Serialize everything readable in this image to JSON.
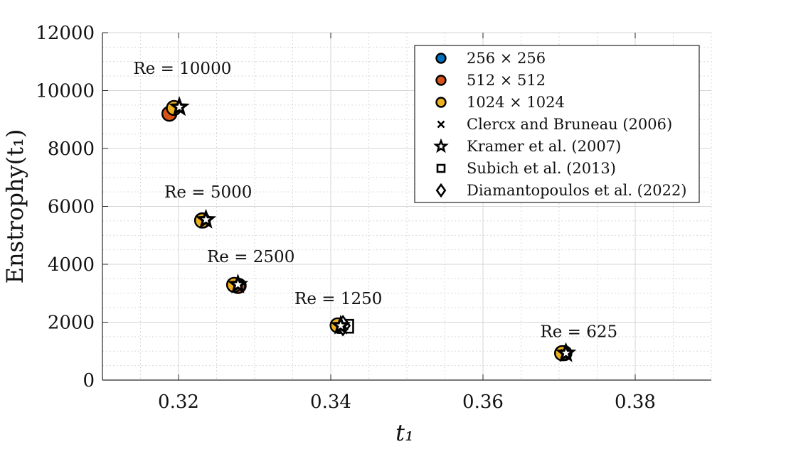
{
  "chart_data": {
    "type": "scatter",
    "xlabel": "t₁",
    "ylabel": "Enstrophy(t₁)",
    "xlim": [
      0.31,
      0.39
    ],
    "ylim": [
      0,
      12000
    ],
    "xticks": [
      0.32,
      0.34,
      0.36,
      0.38
    ],
    "yticks": [
      0,
      2000,
      4000,
      6000,
      8000,
      10000,
      12000
    ],
    "xtick_labels": [
      "0.32",
      "0.34",
      "0.36",
      "0.38"
    ],
    "ytick_labels": [
      "0",
      "2000",
      "4000",
      "6000",
      "8000",
      "10000",
      "12000"
    ],
    "grid": true,
    "minor_grid": true,
    "legend_position": "top-right",
    "series": [
      {
        "name": "256 × 256",
        "marker": "circle",
        "color": "#0072BD",
        "points": [
          [
            0.3231,
            5520
          ],
          [
            0.3279,
            3260
          ],
          [
            0.3411,
            1870
          ],
          [
            0.3707,
            930
          ]
        ]
      },
      {
        "name": "512 × 512",
        "marker": "circle",
        "color": "#D95319",
        "points": [
          [
            0.3188,
            9200
          ],
          [
            0.3232,
            5510
          ],
          [
            0.3278,
            3250
          ],
          [
            0.3414,
            1880
          ],
          [
            0.3704,
            930
          ]
        ]
      },
      {
        "name": "1024 × 1024",
        "marker": "circle",
        "color": "#EDB120",
        "points": [
          [
            0.3194,
            9400
          ],
          [
            0.3231,
            5510
          ],
          [
            0.3273,
            3290
          ],
          [
            0.3409,
            1890
          ],
          [
            0.3704,
            930
          ]
        ]
      },
      {
        "name": "Clercx and Bruneau (2006)",
        "marker": "x",
        "color": "#000000",
        "points": [
          [
            0.3202,
            9380
          ],
          [
            0.3235,
            5500
          ],
          [
            0.3279,
            3250
          ],
          [
            0.3417,
            1880
          ],
          [
            0.3708,
            910
          ]
        ]
      },
      {
        "name": "Kramer et al. (2007)",
        "marker": "star",
        "color": "#000000",
        "points": [
          [
            0.3201,
            9430
          ],
          [
            0.3236,
            5540
          ],
          [
            0.3278,
            3300
          ],
          [
            0.3413,
            1880
          ],
          [
            0.3709,
            930
          ]
        ]
      },
      {
        "name": "Subich et al. (2013)",
        "marker": "square",
        "color": "#000000",
        "points": [
          [
            0.3421,
            1860
          ]
        ]
      },
      {
        "name": "Diamantopoulos et al. (2022)",
        "marker": "diamond",
        "color": "#000000",
        "points": [
          [
            0.3416,
            1880
          ]
        ]
      }
    ],
    "annotations": [
      {
        "text": "Re = 10000",
        "x": 0.3205,
        "y": 10580
      },
      {
        "text": "Re = 5000",
        "x": 0.3239,
        "y": 6310
      },
      {
        "text": "Re = 2500",
        "x": 0.3295,
        "y": 4070
      },
      {
        "text": "Re = 1250",
        "x": 0.341,
        "y": 2620
      },
      {
        "text": "Re = 625",
        "x": 0.3726,
        "y": 1490
      }
    ]
  }
}
